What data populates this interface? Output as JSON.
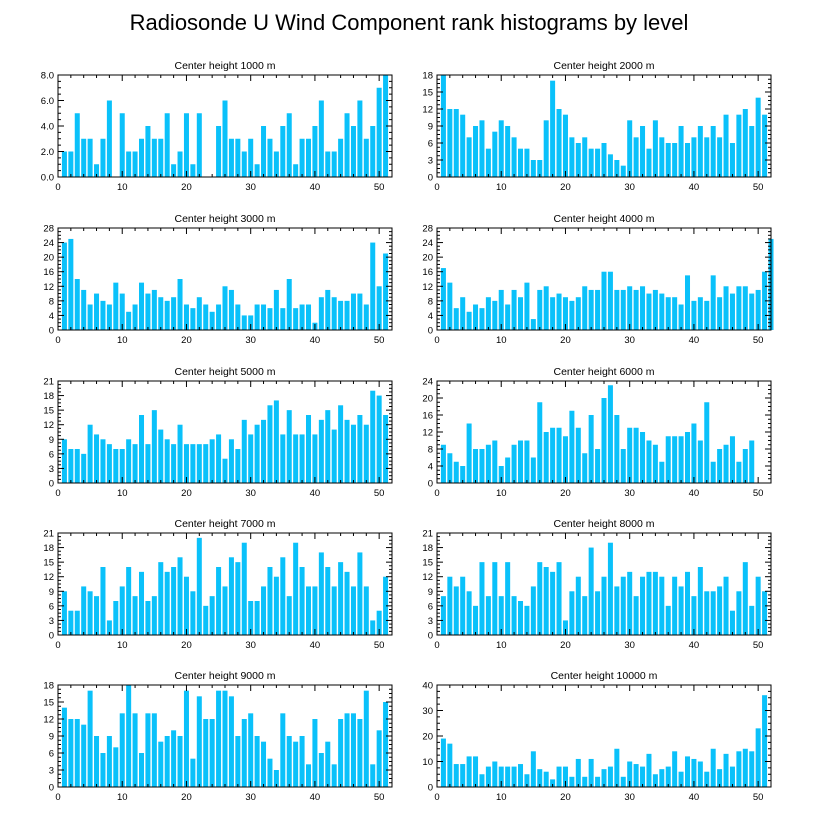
{
  "figure": {
    "title": "Radiosonde U Wind Component rank histograms by level"
  },
  "chart_data": [
    {
      "type": "bar",
      "title": "Center height 1000 m",
      "xlim": [
        0,
        52
      ],
      "ylim": [
        0,
        8
      ],
      "yticks": [
        "0.0",
        "2.0",
        "4.0",
        "6.0",
        "8.0"
      ],
      "xticks": [
        "0",
        "10",
        "20",
        "30",
        "40",
        "50"
      ],
      "values": [
        2,
        2,
        5,
        3,
        3,
        1,
        3,
        6,
        0,
        5,
        2,
        2,
        3,
        4,
        3,
        3,
        5,
        1,
        2,
        5,
        1,
        5,
        0,
        0,
        4,
        6,
        3,
        3,
        2,
        3,
        1,
        4,
        3,
        2,
        4,
        5,
        1,
        3,
        3,
        4,
        6,
        2,
        2,
        3,
        5,
        4,
        6,
        3,
        4,
        7,
        8
      ]
    },
    {
      "type": "bar",
      "title": "Center height 2000 m",
      "xlim": [
        0,
        52
      ],
      "ylim": [
        0,
        18
      ],
      "yticks": [
        "0",
        "3",
        "6",
        "9",
        "12",
        "15",
        "18"
      ],
      "xticks": [
        "0",
        "10",
        "20",
        "30",
        "40",
        "50"
      ],
      "values": [
        18,
        12,
        12,
        11,
        7,
        9,
        10,
        5,
        8,
        10,
        9,
        7,
        5,
        5,
        3,
        3,
        10,
        17,
        12,
        11,
        7,
        6,
        7,
        5,
        5,
        6,
        4,
        3,
        2,
        10,
        7,
        9,
        5,
        10,
        7,
        6,
        6,
        9,
        6,
        7,
        9,
        7,
        9,
        7,
        11,
        6,
        11,
        12,
        9,
        14,
        11
      ]
    },
    {
      "type": "bar",
      "title": "Center height 3000 m",
      "xlim": [
        0,
        52
      ],
      "ylim": [
        0,
        28
      ],
      "yticks": [
        "0",
        "4",
        "8",
        "12",
        "16",
        "20",
        "24",
        "28"
      ],
      "xticks": [
        "0",
        "10",
        "20",
        "30",
        "40",
        "50"
      ],
      "values": [
        24,
        25,
        14,
        11,
        7,
        10,
        8,
        7,
        13,
        10,
        5,
        7,
        13,
        10,
        11,
        9,
        8,
        9,
        14,
        7,
        6,
        9,
        7,
        5,
        7,
        12,
        11,
        7,
        4,
        4,
        7,
        7,
        6,
        11,
        6,
        14,
        6,
        7,
        7,
        2,
        9,
        11,
        9,
        8,
        8,
        10,
        10,
        7,
        24,
        12,
        21
      ]
    },
    {
      "type": "bar",
      "title": "Center height 4000 m",
      "xlim": [
        0,
        52
      ],
      "ylim": [
        0,
        28
      ],
      "yticks": [
        "0",
        "4",
        "8",
        "12",
        "16",
        "20",
        "24",
        "28"
      ],
      "xticks": [
        "0",
        "10",
        "20",
        "30",
        "40",
        "50"
      ],
      "values": [
        17,
        13,
        6,
        9,
        5,
        7,
        6,
        9,
        8,
        11,
        7,
        11,
        9,
        13,
        3,
        11,
        12,
        9,
        10,
        9,
        8,
        9,
        12,
        11,
        11,
        16,
        16,
        11,
        11,
        12,
        11,
        12,
        10,
        11,
        10,
        9,
        9,
        7,
        15,
        8,
        9,
        8,
        15,
        9,
        12,
        10,
        12,
        12,
        10,
        11,
        16,
        25
      ]
    },
    {
      "type": "bar",
      "title": "Center height 5000 m",
      "xlim": [
        0,
        52
      ],
      "ylim": [
        0,
        21
      ],
      "yticks": [
        "0",
        "3",
        "6",
        "9",
        "12",
        "15",
        "18",
        "21"
      ],
      "xticks": [
        "0",
        "10",
        "20",
        "30",
        "40",
        "50"
      ],
      "values": [
        9,
        7,
        7,
        6,
        12,
        10,
        9,
        8,
        7,
        7,
        9,
        8,
        14,
        8,
        15,
        11,
        9,
        8,
        12,
        8,
        8,
        8,
        8,
        9,
        10,
        5,
        9,
        7,
        13,
        10,
        12,
        13,
        16,
        17,
        10,
        15,
        10,
        10,
        14,
        10,
        13,
        15,
        11,
        16,
        13,
        12,
        14,
        12,
        19,
        18,
        14
      ]
    },
    {
      "type": "bar",
      "title": "Center height 6000 m",
      "xlim": [
        0,
        52
      ],
      "ylim": [
        0,
        24
      ],
      "yticks": [
        "0",
        "4",
        "8",
        "12",
        "16",
        "20",
        "24"
      ],
      "xticks": [
        "0",
        "10",
        "20",
        "30",
        "40",
        "50"
      ],
      "values": [
        9,
        7,
        5,
        4,
        14,
        8,
        8,
        9,
        10,
        4,
        6,
        9,
        10,
        10,
        6,
        19,
        12,
        13,
        13,
        11,
        17,
        13,
        7,
        16,
        8,
        20,
        23,
        16,
        8,
        13,
        13,
        12,
        10,
        9,
        5,
        11,
        11,
        11,
        12,
        14,
        10,
        19,
        5,
        8,
        9,
        11,
        5,
        8,
        10
      ]
    },
    {
      "type": "bar",
      "title": "Center height 7000 m",
      "xlim": [
        0,
        52
      ],
      "ylim": [
        0,
        21
      ],
      "yticks": [
        "0",
        "3",
        "6",
        "9",
        "12",
        "15",
        "18",
        "21"
      ],
      "xticks": [
        "0",
        "10",
        "20",
        "30",
        "40",
        "50"
      ],
      "values": [
        9,
        5,
        5,
        10,
        9,
        8,
        14,
        3,
        7,
        10,
        14,
        8,
        13,
        7,
        8,
        15,
        13,
        14,
        16,
        12,
        9,
        20,
        6,
        8,
        14,
        10,
        16,
        15,
        19,
        7,
        7,
        10,
        14,
        12,
        16,
        8,
        19,
        14,
        10,
        10,
        17,
        14,
        10,
        15,
        13,
        10,
        17,
        10,
        3,
        5,
        12
      ]
    },
    {
      "type": "bar",
      "title": "Center height 8000 m",
      "xlim": [
        0,
        52
      ],
      "ylim": [
        0,
        21
      ],
      "yticks": [
        "0",
        "3",
        "6",
        "9",
        "12",
        "15",
        "18",
        "21"
      ],
      "xticks": [
        "0",
        "10",
        "20",
        "30",
        "40",
        "50"
      ],
      "values": [
        8,
        12,
        10,
        12,
        9,
        6,
        15,
        8,
        15,
        8,
        15,
        8,
        7,
        6,
        10,
        15,
        14,
        13,
        15,
        3,
        9,
        12,
        8,
        18,
        9,
        12,
        19,
        10,
        12,
        13,
        8,
        12,
        13,
        13,
        12,
        6,
        12,
        10,
        13,
        8,
        14,
        9,
        9,
        10,
        12,
        5,
        9,
        15,
        6,
        12,
        9
      ]
    },
    {
      "type": "bar",
      "title": "Center height 9000 m",
      "xlim": [
        0,
        52
      ],
      "ylim": [
        0,
        18
      ],
      "yticks": [
        "0",
        "3",
        "6",
        "9",
        "12",
        "15",
        "18"
      ],
      "xticks": [
        "0",
        "10",
        "20",
        "30",
        "40",
        "50"
      ],
      "values": [
        14,
        12,
        12,
        11,
        17,
        9,
        6,
        9,
        7,
        13,
        18,
        13,
        6,
        13,
        13,
        8,
        9,
        10,
        9,
        17,
        5,
        16,
        12,
        12,
        17,
        17,
        16,
        9,
        12,
        13,
        9,
        8,
        5,
        3,
        13,
        9,
        8,
        9,
        4,
        12,
        6,
        8,
        4,
        12,
        13,
        13,
        12,
        17,
        4,
        10,
        15
      ]
    },
    {
      "type": "bar",
      "title": "Center height 10000 m",
      "xlim": [
        0,
        52
      ],
      "ylim": [
        0,
        40
      ],
      "yticks": [
        "0",
        "10",
        "20",
        "30",
        "40"
      ],
      "xticks": [
        "0",
        "10",
        "20",
        "30",
        "40",
        "50"
      ],
      "values": [
        19,
        17,
        9,
        9,
        12,
        12,
        5,
        8,
        10,
        8,
        8,
        8,
        9,
        5,
        14,
        7,
        6,
        3,
        8,
        8,
        4,
        11,
        4,
        11,
        4,
        7,
        8,
        15,
        4,
        10,
        9,
        8,
        13,
        5,
        7,
        8,
        14,
        6,
        12,
        11,
        10,
        6,
        15,
        7,
        13,
        8,
        14,
        15,
        14,
        23,
        36
      ]
    }
  ]
}
